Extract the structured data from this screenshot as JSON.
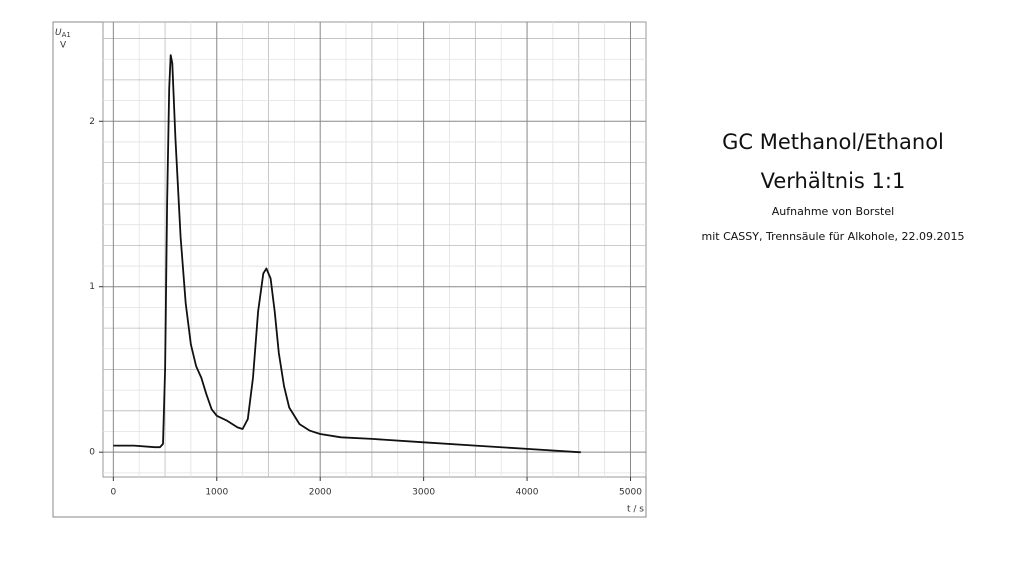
{
  "chart_data": {
    "type": "line",
    "title": "GC Methanol/Ethanol",
    "subtitle": "Verhältnis 1:1",
    "annotations": [
      "Aufnahme von Borstel",
      "mit CASSY, Trennsäule für Alkohole, 22.09.2015"
    ],
    "y_label_symbol": "U",
    "y_label_subscript": "A1",
    "y_unit": "V",
    "x_label": "t / s",
    "x": [
      0,
      200,
      400,
      450,
      480,
      500,
      520,
      540,
      555,
      570,
      600,
      650,
      700,
      750,
      800,
      850,
      900,
      950,
      1000,
      1100,
      1200,
      1250,
      1300,
      1350,
      1400,
      1450,
      1480,
      1520,
      1560,
      1600,
      1650,
      1700,
      1800,
      1900,
      2000,
      2200,
      2500,
      3000,
      3500,
      4000,
      4500,
      4520
    ],
    "values": [
      0.04,
      0.04,
      0.03,
      0.03,
      0.05,
      0.5,
      1.5,
      2.2,
      2.4,
      2.35,
      1.9,
      1.3,
      0.9,
      0.65,
      0.52,
      0.45,
      0.35,
      0.26,
      0.22,
      0.19,
      0.15,
      0.14,
      0.2,
      0.45,
      0.85,
      1.08,
      1.11,
      1.05,
      0.85,
      0.6,
      0.4,
      0.27,
      0.17,
      0.13,
      0.11,
      0.09,
      0.08,
      0.06,
      0.04,
      0.02,
      0.0,
      0.0
    ],
    "color": "#111111",
    "xlim": [
      -100,
      5150
    ],
    "xticks": [
      0,
      1000,
      2000,
      3000,
      4000,
      5000
    ],
    "ylim": [
      -0.15,
      2.6
    ],
    "yticks": [
      0,
      1,
      2
    ],
    "grid": true
  }
}
